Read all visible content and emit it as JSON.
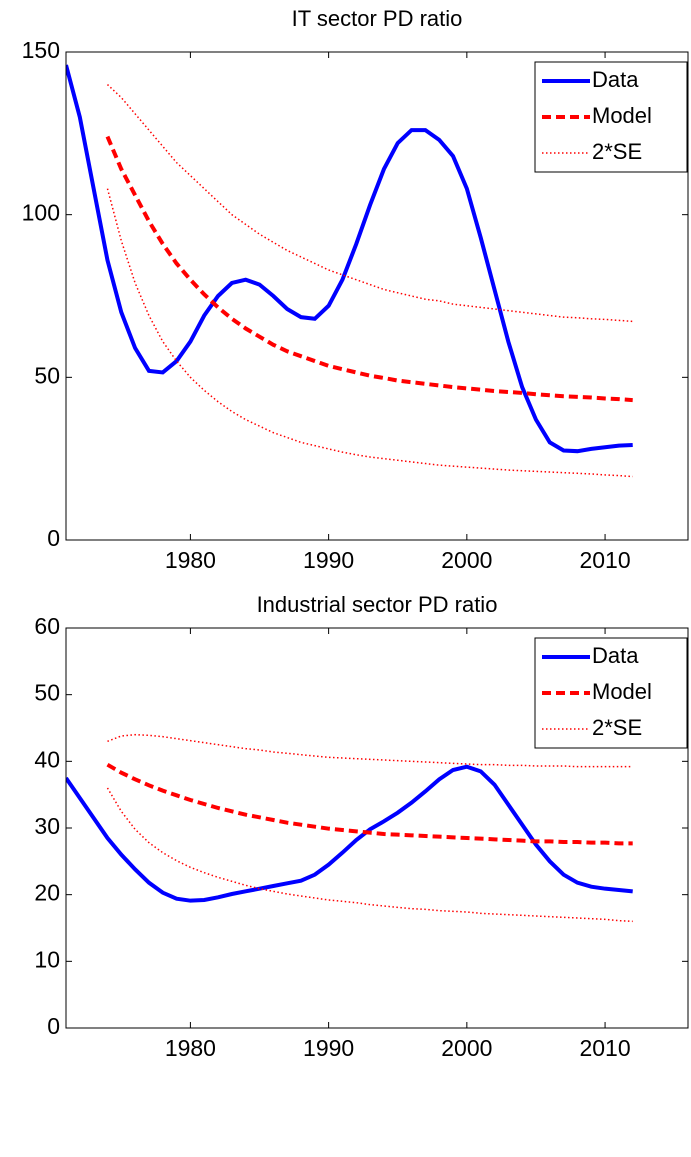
{
  "chart_data": [
    {
      "type": "line",
      "title": "IT sector PD ratio",
      "x": [
        1971,
        1972,
        1973,
        1974,
        1975,
        1976,
        1977,
        1978,
        1979,
        1980,
        1981,
        1982,
        1983,
        1984,
        1985,
        1986,
        1987,
        1988,
        1989,
        1990,
        1991,
        1992,
        1993,
        1994,
        1995,
        1996,
        1997,
        1998,
        1999,
        2000,
        2001,
        2002,
        2003,
        2004,
        2005,
        2006,
        2007,
        2008,
        2009,
        2010,
        2011,
        2012
      ],
      "xlim": [
        1971,
        2016
      ],
      "xticks": [
        1980,
        1990,
        2000,
        2010
      ],
      "ylim": [
        0,
        150
      ],
      "yticks": [
        0,
        50,
        100,
        150
      ],
      "legend": "upper-right",
      "series": [
        {
          "name": "Data",
          "color": "#0000ff",
          "dash": "solid",
          "values": [
            146,
            130,
            108,
            86,
            70,
            59,
            52,
            51.5,
            55,
            61,
            69,
            75,
            79,
            80,
            78.5,
            75,
            71,
            68.5,
            68,
            72,
            80,
            91,
            103,
            114,
            122,
            126,
            126,
            123,
            118,
            108,
            93,
            77,
            61,
            47,
            37,
            30,
            27.5,
            27.3,
            28,
            28.5,
            29,
            29.2
          ]
        },
        {
          "name": "Model",
          "color": "#ff0000",
          "dash": "dashed",
          "values": [
            null,
            null,
            null,
            124,
            114,
            106,
            98,
            91,
            85,
            80,
            75.5,
            71.5,
            68,
            65,
            62.5,
            60,
            58,
            56.5,
            55,
            53.5,
            52.5,
            51.5,
            50.5,
            49.8,
            49,
            48.5,
            48,
            47.5,
            47,
            46.6,
            46.2,
            45.8,
            45.5,
            45.2,
            44.8,
            44.5,
            44.2,
            44,
            43.8,
            43.5,
            43.3,
            43
          ]
        },
        {
          "name": "2*SE",
          "color": "#ff0000",
          "dash": "dotted",
          "values": [
            null,
            null,
            null,
            140,
            136,
            131,
            126,
            121,
            116,
            112,
            108,
            104,
            100,
            97,
            94,
            91.5,
            89,
            87,
            85,
            83,
            81.5,
            80,
            78.5,
            77,
            76,
            75,
            74,
            73.5,
            72.5,
            72,
            71.5,
            71,
            70.5,
            70,
            69.5,
            69,
            68.5,
            68.3,
            68,
            67.8,
            67.5,
            67.2
          ],
          "lower": [
            null,
            null,
            null,
            108,
            92,
            79,
            69,
            61,
            55,
            50,
            46,
            42.5,
            39.5,
            37,
            35,
            33,
            31.5,
            30,
            29,
            28,
            27,
            26.2,
            25.5,
            25,
            24.5,
            24,
            23.5,
            23,
            22.7,
            22.4,
            22.1,
            21.8,
            21.5,
            21.3,
            21.1,
            20.9,
            20.7,
            20.5,
            20.3,
            20,
            19.8,
            19.5
          ]
        }
      ]
    },
    {
      "type": "line",
      "title": "Industrial sector PD ratio",
      "x": [
        1971,
        1972,
        1973,
        1974,
        1975,
        1976,
        1977,
        1978,
        1979,
        1980,
        1981,
        1982,
        1983,
        1984,
        1985,
        1986,
        1987,
        1988,
        1989,
        1990,
        1991,
        1992,
        1993,
        1994,
        1995,
        1996,
        1997,
        1998,
        1999,
        2000,
        2001,
        2002,
        2003,
        2004,
        2005,
        2006,
        2007,
        2008,
        2009,
        2010,
        2011,
        2012
      ],
      "xlim": [
        1971,
        2016
      ],
      "xticks": [
        1980,
        1990,
        2000,
        2010
      ],
      "ylim": [
        0,
        60
      ],
      "yticks": [
        0,
        10,
        20,
        30,
        40,
        50,
        60
      ],
      "legend": "upper-right",
      "series": [
        {
          "name": "Data",
          "color": "#0000ff",
          "dash": "solid",
          "values": [
            37.5,
            34.5,
            31.5,
            28.5,
            26,
            23.8,
            21.8,
            20.3,
            19.4,
            19.1,
            19.2,
            19.6,
            20.1,
            20.5,
            20.9,
            21.3,
            21.7,
            22.1,
            23,
            24.5,
            26.3,
            28.2,
            29.8,
            31,
            32.3,
            33.8,
            35.5,
            37.3,
            38.7,
            39.2,
            38.5,
            36.5,
            33.5,
            30.5,
            27.5,
            25,
            23,
            21.8,
            21.2,
            20.9,
            20.7,
            20.5
          ]
        },
        {
          "name": "Model",
          "color": "#ff0000",
          "dash": "dashed",
          "values": [
            null,
            null,
            null,
            39.5,
            38.3,
            37.3,
            36.4,
            35.6,
            34.9,
            34.2,
            33.6,
            33,
            32.5,
            32,
            31.6,
            31.2,
            30.8,
            30.5,
            30.2,
            29.9,
            29.7,
            29.5,
            29.3,
            29.1,
            29,
            28.9,
            28.8,
            28.7,
            28.6,
            28.5,
            28.4,
            28.3,
            28.2,
            28.1,
            28,
            28,
            27.9,
            27.9,
            27.8,
            27.8,
            27.7,
            27.7
          ]
        },
        {
          "name": "2*SE",
          "color": "#ff0000",
          "dash": "dotted",
          "values": [
            null,
            null,
            null,
            43,
            43.8,
            44,
            43.9,
            43.7,
            43.4,
            43.1,
            42.8,
            42.5,
            42.2,
            41.9,
            41.7,
            41.4,
            41.2,
            41,
            40.8,
            40.6,
            40.5,
            40.4,
            40.3,
            40.2,
            40.1,
            40,
            39.9,
            39.8,
            39.7,
            39.6,
            39.5,
            39.5,
            39.4,
            39.4,
            39.3,
            39.3,
            39.3,
            39.2,
            39.2,
            39.2,
            39.2,
            39.2
          ],
          "lower": [
            null,
            null,
            null,
            36,
            32.5,
            29.8,
            27.8,
            26.3,
            25.1,
            24.1,
            23.3,
            22.6,
            22,
            21.4,
            20.9,
            20.5,
            20.1,
            19.8,
            19.5,
            19.2,
            19,
            18.8,
            18.5,
            18.3,
            18.1,
            17.9,
            17.8,
            17.6,
            17.5,
            17.4,
            17.2,
            17.1,
            17,
            16.9,
            16.8,
            16.7,
            16.6,
            16.5,
            16.4,
            16.3,
            16.1,
            16
          ]
        }
      ]
    }
  ]
}
